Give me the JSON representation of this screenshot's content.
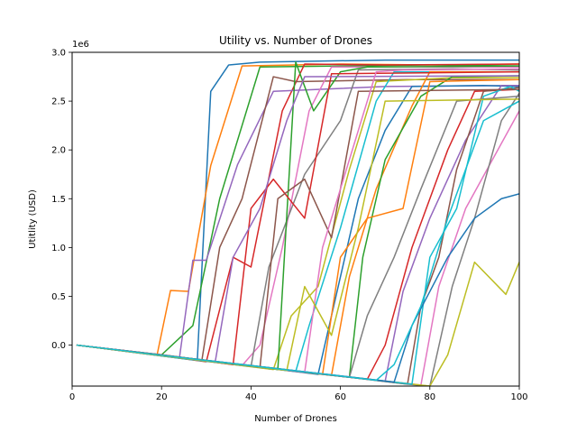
{
  "chart_data": {
    "type": "line",
    "title": "Utility vs. Number of Drones",
    "xlabel": "Number of Drones",
    "ylabel": "Utitlity (USD)",
    "y_offset_label": "1e6",
    "xlim": [
      0,
      100
    ],
    "ylim": [
      -0.42,
      3.0
    ],
    "y_scale_note": "values in millions (1e6)",
    "xticks": [
      0,
      20,
      40,
      60,
      80,
      100
    ],
    "yticks": [
      0.0,
      0.5,
      1.0,
      1.5,
      2.0,
      2.5,
      3.0
    ],
    "xtick_labels": [
      "0",
      "20",
      "40",
      "60",
      "80",
      "100"
    ],
    "ytick_labels": [
      "0.0",
      "0.5",
      "1.0",
      "1.5",
      "2.0",
      "2.5",
      "3.0"
    ],
    "grid": false,
    "legend": false,
    "series_style": {
      "colors": [
        "#1f77b4",
        "#ff7f0e",
        "#2ca02c",
        "#d62728",
        "#9467bd",
        "#8c564b",
        "#e377c2",
        "#7f7f7f",
        "#bcbd22",
        "#17becf"
      ],
      "line_width": 1.5
    },
    "series": [
      {
        "x": [
          1,
          10,
          20,
          28,
          31,
          35,
          42,
          55,
          70,
          85,
          100
        ],
        "y": [
          0,
          -0.05,
          -0.1,
          -0.15,
          2.6,
          2.87,
          2.9,
          2.91,
          2.92,
          2.92,
          2.92
        ]
      },
      {
        "x": [
          1,
          10,
          19,
          22,
          26,
          31,
          38,
          60,
          80,
          100
        ],
        "y": [
          0,
          -0.05,
          -0.1,
          0.56,
          0.55,
          1.84,
          2.86,
          2.88,
          2.87,
          2.88
        ]
      },
      {
        "x": [
          1,
          10,
          20,
          27,
          33,
          42,
          60,
          80,
          100
        ],
        "y": [
          0,
          -0.05,
          -0.1,
          0.2,
          1.5,
          2.85,
          2.86,
          2.87,
          2.86
        ]
      },
      {
        "x": [
          1,
          15,
          30,
          36,
          40,
          47,
          52,
          70,
          100
        ],
        "y": [
          0,
          -0.08,
          -0.17,
          0.9,
          0.8,
          2.4,
          2.88,
          2.87,
          2.88
        ]
      },
      {
        "x": [
          1,
          12,
          24,
          27,
          30,
          37,
          45,
          70,
          100
        ],
        "y": [
          0,
          -0.06,
          -0.13,
          0.87,
          0.87,
          1.85,
          2.6,
          2.65,
          2.66
        ]
      },
      {
        "x": [
          1,
          15,
          29,
          33,
          38,
          45,
          50,
          75,
          100
        ],
        "y": [
          0,
          -0.08,
          -0.16,
          1.0,
          1.5,
          2.75,
          2.7,
          2.72,
          2.72
        ]
      },
      {
        "x": [
          1,
          20,
          38,
          42,
          47,
          53,
          58,
          80,
          100
        ],
        "y": [
          0,
          -0.1,
          -0.21,
          0.0,
          1.0,
          2.4,
          2.85,
          2.85,
          2.85
        ]
      },
      {
        "x": [
          1,
          20,
          40,
          44,
          52,
          60,
          64,
          85,
          100
        ],
        "y": [
          0,
          -0.11,
          -0.22,
          0.8,
          1.75,
          2.3,
          2.82,
          2.83,
          2.82
        ]
      },
      {
        "x": [
          1,
          22,
          45,
          49,
          55,
          62,
          68,
          85,
          100
        ],
        "y": [
          0,
          -0.12,
          -0.25,
          0.3,
          0.6,
          1.8,
          2.7,
          2.74,
          2.74
        ]
      },
      {
        "x": [
          1,
          25,
          50,
          53,
          60,
          68,
          72,
          90,
          100
        ],
        "y": [
          0,
          -0.14,
          -0.27,
          0.2,
          1.2,
          2.5,
          2.8,
          2.8,
          2.8
        ]
      },
      {
        "x": [
          1,
          30,
          55,
          59,
          64,
          70,
          76,
          92,
          100
        ],
        "y": [
          0,
          -0.16,
          -0.3,
          0.5,
          1.5,
          2.2,
          2.65,
          2.66,
          2.65
        ]
      },
      {
        "x": [
          1,
          30,
          58,
          62,
          68,
          76,
          80,
          100
        ],
        "y": [
          0,
          -0.16,
          -0.31,
          0.7,
          1.6,
          2.45,
          2.8,
          2.8
        ]
      },
      {
        "x": [
          1,
          32,
          62,
          65,
          70,
          78,
          85,
          100
        ],
        "y": [
          0,
          -0.17,
          -0.33,
          0.9,
          1.9,
          2.55,
          2.75,
          2.76
        ]
      },
      {
        "x": [
          1,
          35,
          66,
          70,
          76,
          84,
          90,
          100
        ],
        "y": [
          0,
          -0.19,
          -0.35,
          0.0,
          1.0,
          2.0,
          2.6,
          2.62
        ]
      },
      {
        "x": [
          1,
          38,
          70,
          74,
          80,
          88,
          96,
          100
        ],
        "y": [
          0,
          -0.2,
          -0.37,
          0.55,
          1.3,
          2.1,
          2.66,
          2.66
        ]
      },
      {
        "x": [
          1,
          40,
          75,
          78,
          82,
          86,
          92,
          100
        ],
        "y": [
          0,
          -0.21,
          -0.4,
          0.4,
          0.9,
          1.8,
          2.6,
          2.64
        ]
      },
      {
        "x": [
          1,
          42,
          78,
          82,
          88,
          94,
          100
        ],
        "y": [
          0,
          -0.22,
          -0.41,
          0.6,
          1.4,
          1.9,
          2.4
        ]
      },
      {
        "x": [
          1,
          40,
          75,
          80,
          85,
          90,
          96,
          100
        ],
        "y": [
          0,
          -0.21,
          -0.4,
          -0.42,
          0.6,
          1.3,
          2.3,
          2.58
        ]
      },
      {
        "x": [
          1,
          45,
          80,
          84,
          90,
          97,
          100
        ],
        "y": [
          0,
          -0.24,
          -0.42,
          -0.1,
          0.85,
          0.52,
          0.85
        ]
      },
      {
        "x": [
          1,
          40,
          76,
          80,
          86,
          92,
          98,
          100
        ],
        "y": [
          0,
          -0.21,
          -0.4,
          0.9,
          1.4,
          2.55,
          2.65,
          2.6
        ]
      },
      {
        "x": [
          1,
          38,
          72,
          76,
          84,
          90,
          96,
          100
        ],
        "y": [
          0,
          -0.2,
          -0.38,
          0.2,
          0.9,
          1.3,
          1.5,
          1.55
        ]
      },
      {
        "x": [
          1,
          30,
          56,
          60,
          66,
          74,
          80,
          100
        ],
        "y": [
          0,
          -0.16,
          -0.3,
          0.9,
          1.3,
          1.4,
          2.7,
          2.72
        ]
      },
      {
        "x": [
          1,
          25,
          46,
          50,
          54,
          60,
          66,
          100
        ],
        "y": [
          0,
          -0.13,
          -0.25,
          2.9,
          2.4,
          2.8,
          2.85,
          2.86
        ]
      },
      {
        "x": [
          1,
          20,
          36,
          40,
          45,
          52,
          58,
          100
        ],
        "y": [
          0,
          -0.1,
          -0.2,
          1.4,
          1.7,
          1.3,
          2.78,
          2.8
        ]
      },
      {
        "x": [
          1,
          18,
          32,
          36,
          42,
          48,
          52,
          100
        ],
        "y": [
          0,
          -0.09,
          -0.17,
          0.9,
          1.4,
          2.3,
          2.75,
          2.76
        ]
      },
      {
        "x": [
          1,
          22,
          42,
          46,
          52,
          58,
          64,
          100
        ],
        "y": [
          0,
          -0.11,
          -0.23,
          1.5,
          1.7,
          1.1,
          2.6,
          2.62
        ]
      },
      {
        "x": [
          1,
          28,
          52,
          56,
          62,
          68,
          74,
          100
        ],
        "y": [
          0,
          -0.15,
          -0.28,
          1.0,
          1.9,
          2.8,
          2.82,
          2.83
        ]
      },
      {
        "x": [
          1,
          33,
          62,
          66,
          72,
          78,
          86,
          100
        ],
        "y": [
          0,
          -0.18,
          -0.33,
          0.3,
          0.9,
          1.6,
          2.5,
          2.55
        ]
      },
      {
        "x": [
          1,
          26,
          48,
          52,
          58,
          64,
          70,
          100
        ],
        "y": [
          0,
          -0.14,
          -0.26,
          0.6,
          0.1,
          1.2,
          2.5,
          2.52
        ]
      },
      {
        "x": [
          1,
          36,
          68,
          72,
          78,
          84,
          92,
          100
        ],
        "y": [
          0,
          -0.19,
          -0.36,
          -0.2,
          0.4,
          1.3,
          2.3,
          2.5
        ]
      }
    ]
  }
}
